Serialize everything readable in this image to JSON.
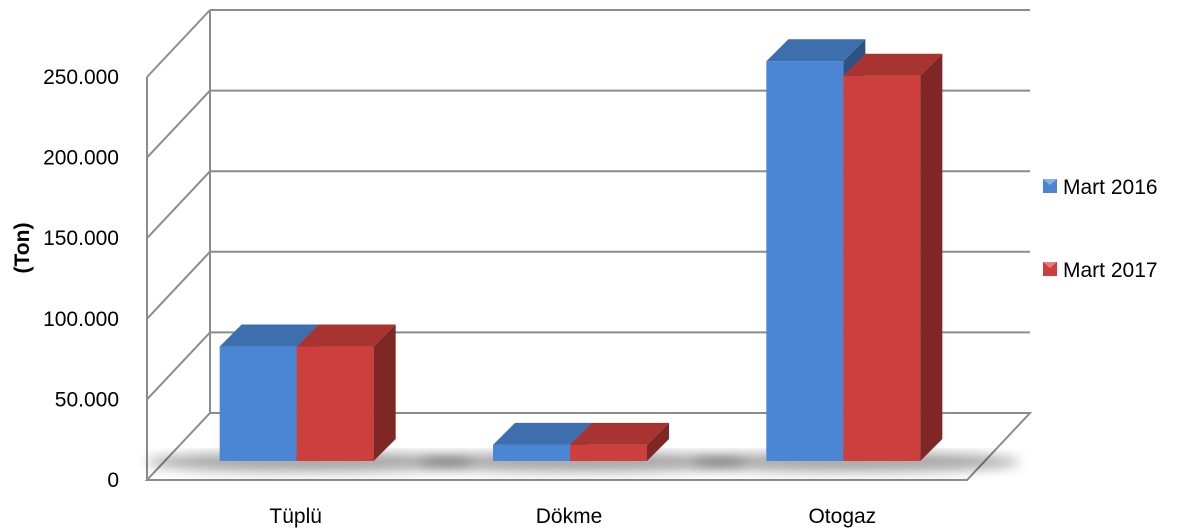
{
  "chart_data": {
    "type": "bar",
    "title": "",
    "xlabel": "",
    "ylabel": "(Ton)",
    "categories": [
      "Tüplü",
      "Dökme",
      "Otogaz"
    ],
    "series": [
      {
        "name": "Mart 2016",
        "color": "#4a86d3",
        "values": [
          71000,
          10000,
          248000
        ]
      },
      {
        "name": "Mart 2017",
        "color": "#cc3f3c",
        "values": [
          71000,
          10000,
          239000
        ]
      }
    ],
    "ylim": [
      0,
      250000
    ],
    "yticks": [
      0,
      50000,
      100000,
      150000,
      200000,
      250000
    ],
    "ytick_labels": [
      "0",
      "50.000",
      "100.000",
      "150.000",
      "200.000",
      "250.000"
    ],
    "grid": true,
    "legend": "right",
    "style": "3d-clustered-column"
  }
}
